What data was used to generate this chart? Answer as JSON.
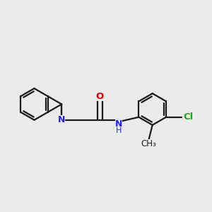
{
  "background_color": "#ebebeb",
  "bond_color": "#1a1a1a",
  "N_color": "#2020ff",
  "O_color": "#dd0000",
  "Cl_color": "#1aaa1a",
  "line_width": 1.6,
  "figsize": [
    3.0,
    3.0
  ],
  "dpi": 100,
  "xlim": [
    -2.2,
    3.6
  ],
  "ylim": [
    -1.8,
    1.8
  ]
}
